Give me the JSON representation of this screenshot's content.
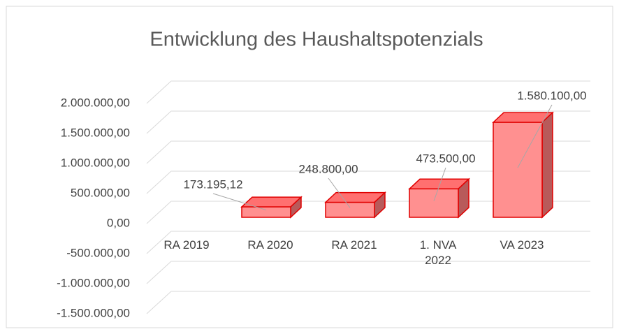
{
  "chart_data": {
    "type": "bar3d",
    "title": "Entwicklung des Haushaltspotenzials",
    "categories": [
      "RA 2019",
      "RA 2020",
      "RA 2021",
      "1. NVA 2022",
      "VA 2023"
    ],
    "values": [
      173195.12,
      248800,
      473500,
      1580100,
      null
    ],
    "value_labels": [
      "173.195,12",
      "248.800,00",
      "473.500,00",
      "1.580.100,00",
      null
    ],
    "color": "#ff9090",
    "ylim": [
      -1500000,
      2000000
    ],
    "yticks": [
      {
        "value": -1500000,
        "label": "-1.500.000,00"
      },
      {
        "value": -1000000,
        "label": "-1.000.000,00"
      },
      {
        "value": -500000,
        "label": "-500.000,00"
      },
      {
        "value": 0,
        "label": "0,00"
      },
      {
        "value": 500000,
        "label": "500.000,00"
      },
      {
        "value": 1000000,
        "label": "1.000.000,00"
      },
      {
        "value": 1500000,
        "label": "1.500.000,00"
      },
      {
        "value": 2000000,
        "label": "2.000.000,00"
      }
    ],
    "grid": true
  }
}
